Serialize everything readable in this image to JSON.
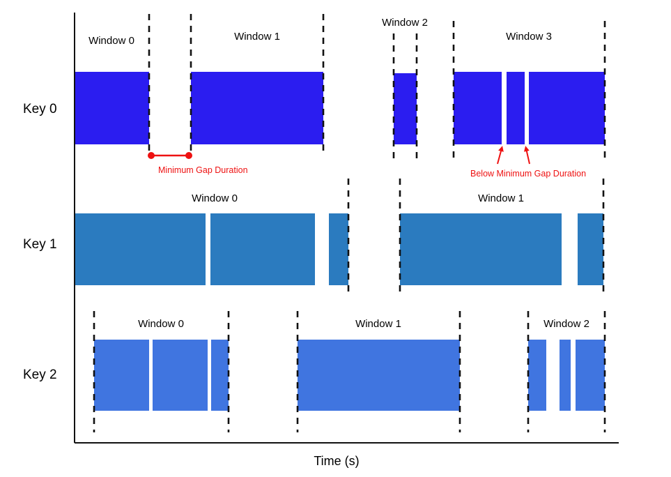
{
  "axis": {
    "x_label": "Time (s)"
  },
  "colors": {
    "key0": "#2b1df0",
    "key1": "#2b7bbf",
    "key2": "#4075e0",
    "annotation": "#ee1111"
  },
  "rows": [
    {
      "key": "Key 0",
      "color": "#2b1df0",
      "windows": [
        {
          "label": "Window 0"
        },
        {
          "label": "Window 1"
        },
        {
          "label": "Window 2"
        },
        {
          "label": "Window 3"
        }
      ]
    },
    {
      "key": "Key 1",
      "color": "#2b7bbf",
      "windows": [
        {
          "label": "Window 0"
        },
        {
          "label": "Window 1"
        }
      ]
    },
    {
      "key": "Key 2",
      "color": "#4075e0",
      "windows": [
        {
          "label": "Window 0"
        },
        {
          "label": "Window 1"
        },
        {
          "label": "Window 2"
        }
      ]
    }
  ],
  "annotations": {
    "min_gap": "Minimum Gap Duration",
    "below_min_gap": "Below Minimum Gap Duration"
  }
}
